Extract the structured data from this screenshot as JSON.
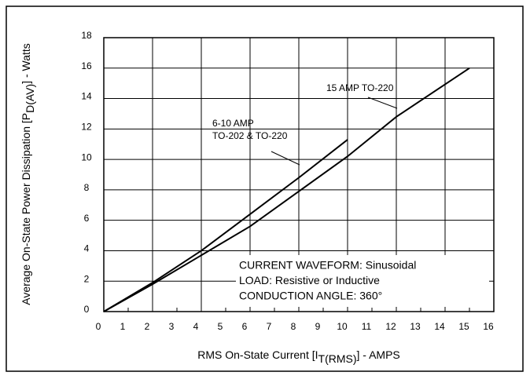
{
  "chart_data": {
    "type": "line",
    "xlabel": {
      "main": "RMS On-State Current [I",
      "sub": "T(RMS)",
      "end": "] - AMPS"
    },
    "ylabel": {
      "main": "Average On-State Power Dissipation [P",
      "sub": "D(AV)",
      "end": "] - Watts"
    },
    "xlim": [
      0,
      16
    ],
    "xticks": [
      0,
      1,
      2,
      3,
      4,
      5,
      6,
      7,
      8,
      9,
      10,
      11,
      12,
      13,
      14,
      15,
      16
    ],
    "ylim": [
      0,
      18
    ],
    "yticks": [
      0,
      2,
      4,
      6,
      8,
      10,
      12,
      14,
      16,
      18
    ],
    "grid": true,
    "series": [
      {
        "name": "15 AMP TO-220",
        "color": "#000000",
        "x": [
          0,
          2,
          4,
          6,
          8,
          10,
          12,
          15
        ],
        "values": [
          0,
          1.8,
          3.7,
          5.6,
          7.9,
          10.2,
          12.8,
          16
        ]
      },
      {
        "name": [
          "6-10 AMP",
          "TO-202 & TO-220"
        ],
        "color": "#000000",
        "x": [
          0,
          2,
          4,
          6,
          8,
          10
        ],
        "values": [
          0,
          1.9,
          4.0,
          6.4,
          8.8,
          11.3
        ]
      }
    ],
    "annotations": [
      "CURRENT WAVEFORM: Sinusoidal",
      "LOAD: Resistive or Inductive",
      "CONDUCTION ANGLE: 360°"
    ]
  }
}
